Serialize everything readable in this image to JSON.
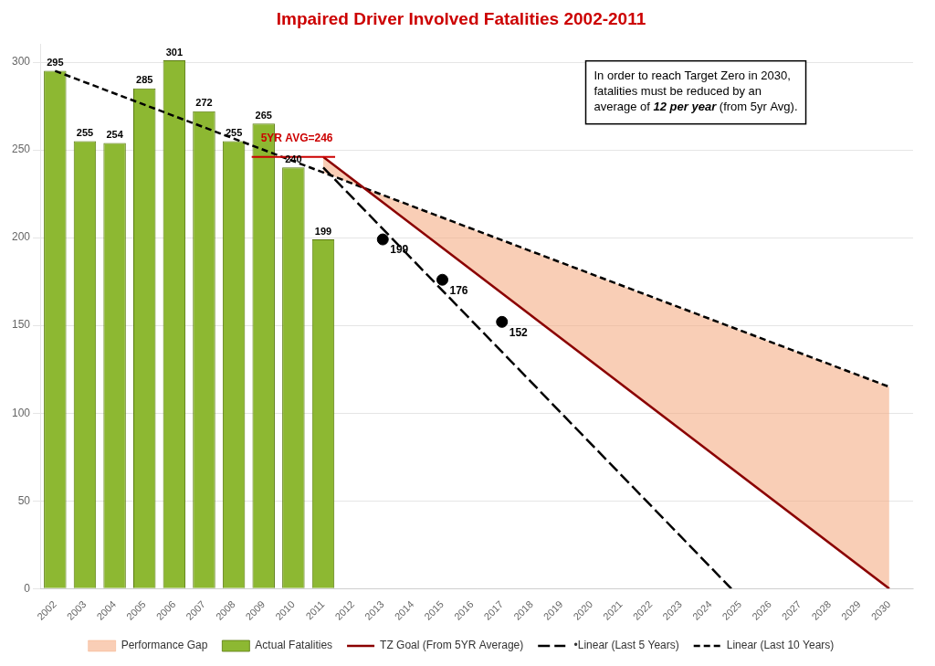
{
  "chart_data": {
    "type": "bar",
    "title": "Impaired Driver Involved Fatalities 2002-2011",
    "title_color": "#cc0000",
    "series": [
      {
        "name": "Performance Gap",
        "type": "area",
        "color": "#f4a57a",
        "between": [
          "TZ Goal (From 5YR Average)",
          "Linear (Last 10 Years)"
        ]
      },
      {
        "name": "Actual Fatalities",
        "type": "bar",
        "color": "#8db832",
        "edge_color": "#5a7a10",
        "x": [
          2002,
          2003,
          2004,
          2005,
          2006,
          2007,
          2008,
          2009,
          2010,
          2011
        ],
        "values": [
          295,
          255,
          254,
          285,
          301,
          272,
          255,
          265,
          240,
          199
        ],
        "data_labels": true
      },
      {
        "name": "TZ Goal (From 5YR Average)",
        "type": "line",
        "color": "#8b0000",
        "line_style": "solid",
        "x": [
          2011,
          2030
        ],
        "values": [
          246,
          0
        ]
      },
      {
        "name": " •Linear (Last 5 Years)",
        "type": "line",
        "color": "#000000",
        "line_style": "long_dashed",
        "x": [
          2011,
          2024.7
        ],
        "values": [
          240,
          0
        ]
      },
      {
        "name": "Linear (Last 10 Years)",
        "type": "line",
        "color": "#000000",
        "line_style": "dashed",
        "x": [
          2002,
          2030
        ],
        "values": [
          295,
          115
        ]
      }
    ],
    "average_line": {
      "label": "5YR AVG=246",
      "value": 246,
      "x": [
        2008.6,
        2011.4
      ],
      "color": "#cc0000"
    },
    "points": {
      "x": [
        2013,
        2015,
        2017
      ],
      "values": [
        199,
        176,
        152
      ],
      "color": "#000000",
      "marker": "circle",
      "data_labels": true
    },
    "annotation": {
      "lines": [
        "In order to reach Target Zero in 2030,",
        "fatalities must be reduced by an",
        "average of 12 per year (from 5yr Avg)."
      ],
      "emphasis": "12 per year"
    },
    "xlim": [
      2001.5,
      2030.8
    ],
    "xticks": [
      2002,
      2003,
      2004,
      2005,
      2006,
      2007,
      2008,
      2009,
      2010,
      2011,
      2012,
      2013,
      2014,
      2015,
      2016,
      2017,
      2018,
      2019,
      2020,
      2021,
      2022,
      2023,
      2024,
      2025,
      2026,
      2027,
      2028,
      2029,
      2030
    ],
    "ylim": [
      0,
      310
    ],
    "yticks": [
      0,
      50,
      100,
      150,
      200,
      250,
      300
    ],
    "grid": "y",
    "legend": "bottom"
  }
}
